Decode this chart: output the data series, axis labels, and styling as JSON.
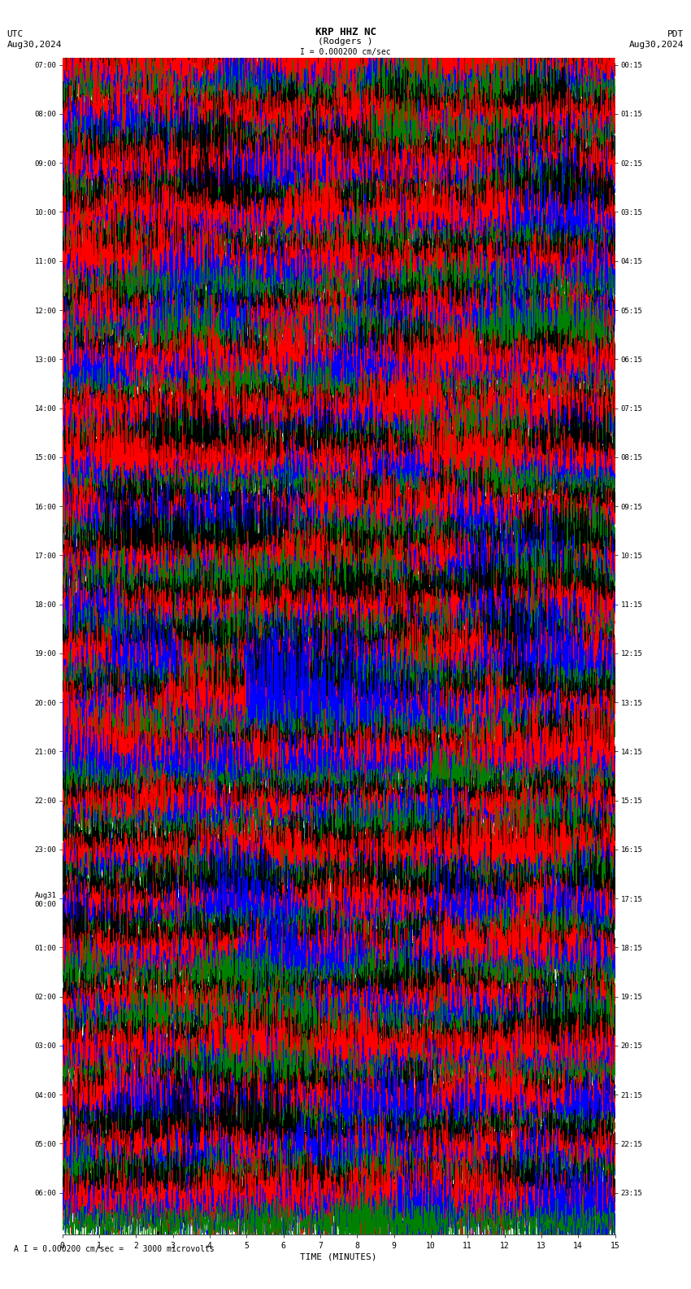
{
  "title_line1": "KRP HHZ NC",
  "title_line2": "(Rodgers )",
  "scale_label": "I = 0.000200 cm/sec",
  "bottom_label": "A I = 0.000200 cm/sec =    3000 microvolts",
  "left_header": "UTC",
  "left_date": "Aug30,2024",
  "right_header": "PDT",
  "right_date": "Aug30,2024",
  "xlabel": "TIME (MINUTES)",
  "xticks": [
    0,
    1,
    2,
    3,
    4,
    5,
    6,
    7,
    8,
    9,
    10,
    11,
    12,
    13,
    14,
    15
  ],
  "background_color": "#ffffff",
  "trace_colors": [
    "#000000",
    "#ff0000",
    "#0000ff",
    "#008000"
  ],
  "num_rows": 24,
  "left_labels": [
    "07:00",
    "08:00",
    "09:00",
    "10:00",
    "11:00",
    "12:00",
    "13:00",
    "14:00",
    "15:00",
    "16:00",
    "17:00",
    "18:00",
    "19:00",
    "20:00",
    "21:00",
    "22:00",
    "23:00",
    "Aug31\n00:00",
    "01:00",
    "02:00",
    "03:00",
    "04:00",
    "05:00",
    "06:00"
  ],
  "right_labels": [
    "00:15",
    "01:15",
    "02:15",
    "03:15",
    "04:15",
    "05:15",
    "06:15",
    "07:15",
    "08:15",
    "09:15",
    "10:15",
    "11:15",
    "12:15",
    "13:15",
    "14:15",
    "15:15",
    "16:15",
    "17:15",
    "18:15",
    "19:15",
    "20:15",
    "21:15",
    "22:15",
    "23:15"
  ]
}
